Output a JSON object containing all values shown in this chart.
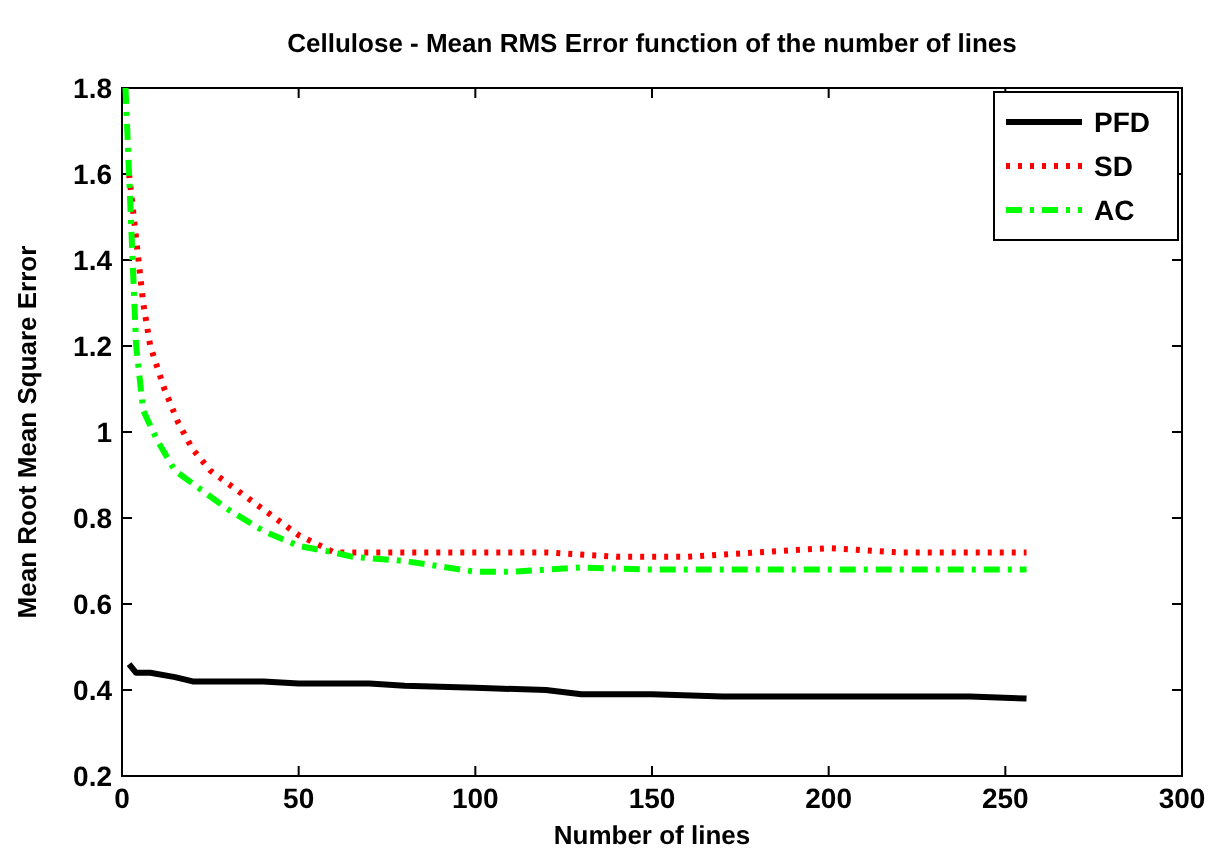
{
  "chart_data": {
    "type": "line",
    "title": "Cellulose - Mean RMS Error function of the number of lines",
    "xlabel": "Number of lines",
    "ylabel": "Mean Root Mean Square Error",
    "xlim": [
      0,
      300
    ],
    "xticks": [
      0,
      50,
      100,
      150,
      200,
      250,
      300
    ],
    "ylim": [
      0.2,
      1.8
    ],
    "yticks": [
      0.2,
      0.4,
      0.6,
      0.8,
      1,
      1.2,
      1.4,
      1.6,
      1.8
    ],
    "grid": false,
    "legend": "top right",
    "series": [
      {
        "name": "PFD",
        "color": "#000000",
        "line_style": "solid",
        "x": [
          2,
          4,
          8,
          15,
          20,
          40,
          50,
          70,
          80,
          100,
          120,
          130,
          150,
          170,
          200,
          240,
          256
        ],
        "values": [
          0.46,
          0.44,
          0.44,
          0.43,
          0.42,
          0.42,
          0.415,
          0.415,
          0.41,
          0.405,
          0.4,
          0.39,
          0.39,
          0.385,
          0.385,
          0.385,
          0.38
        ]
      },
      {
        "name": "SD",
        "color": "#ff0000",
        "line_style": "dotted",
        "x": [
          2,
          4,
          6,
          8,
          12,
          16,
          20,
          25,
          30,
          40,
          50,
          60,
          70,
          100,
          120,
          140,
          160,
          180,
          200,
          220,
          256
        ],
        "values": [
          1.6,
          1.45,
          1.3,
          1.2,
          1.1,
          1.02,
          0.96,
          0.91,
          0.88,
          0.82,
          0.76,
          0.72,
          0.72,
          0.72,
          0.72,
          0.71,
          0.71,
          0.72,
          0.73,
          0.72,
          0.72
        ]
      },
      {
        "name": "AC",
        "color": "#00ff00",
        "line_style": "dashed",
        "x": [
          1,
          2,
          3,
          4,
          6,
          10,
          15,
          20,
          30,
          40,
          50,
          60,
          65,
          80,
          100,
          110,
          130,
          150,
          200,
          256
        ],
        "values": [
          1.8,
          1.6,
          1.4,
          1.2,
          1.05,
          0.98,
          0.91,
          0.88,
          0.82,
          0.77,
          0.735,
          0.72,
          0.71,
          0.7,
          0.675,
          0.675,
          0.685,
          0.68,
          0.68,
          0.68
        ]
      }
    ]
  }
}
